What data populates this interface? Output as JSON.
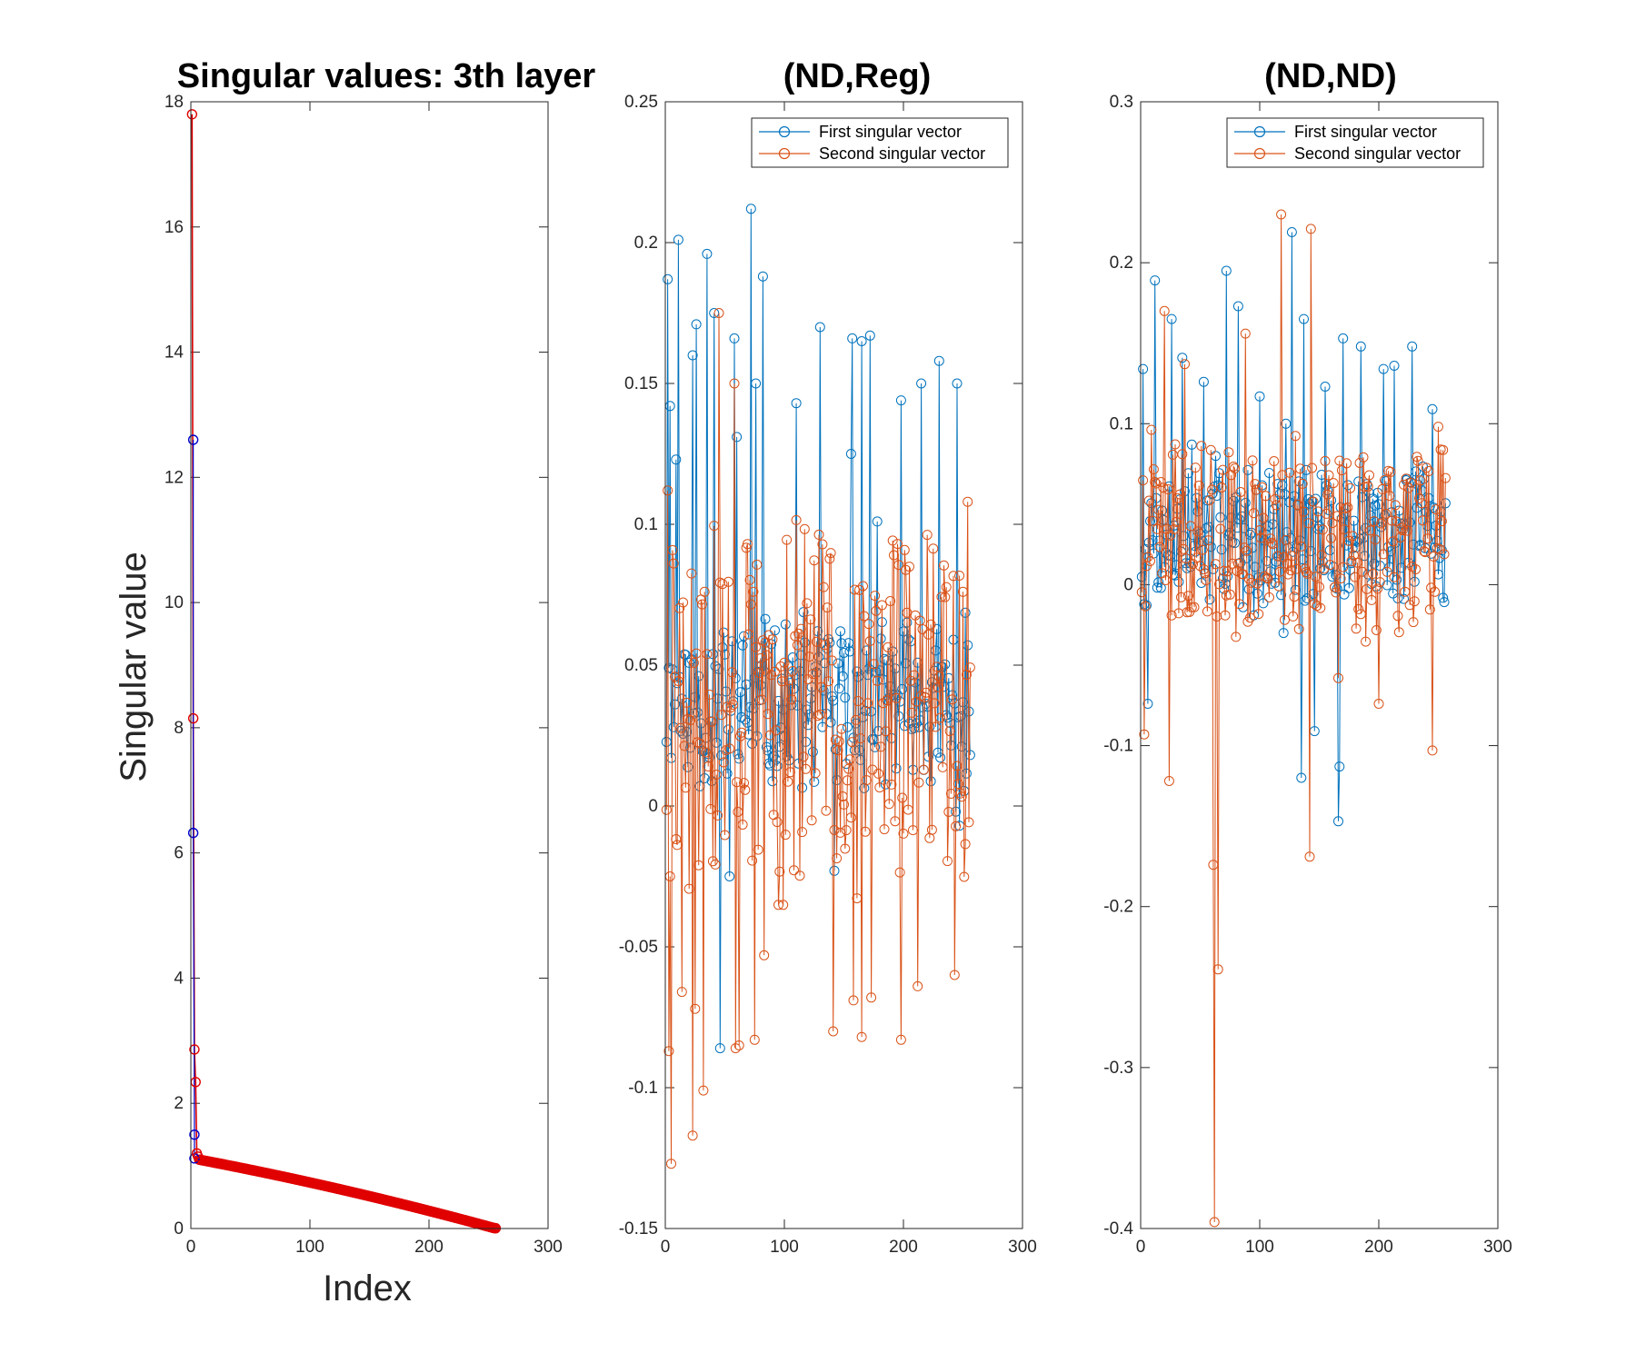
{
  "colors": {
    "first": "#0072BD",
    "second": "#D95319",
    "sv_line": "#D90000",
    "sv_blue": "#0000CC",
    "sv_red": "#E00000",
    "axis": "#262626"
  },
  "chart_data": [
    {
      "type": "line",
      "title": "Singular values: 3th layer",
      "xlabel": "Index",
      "ylabel": "Singular value",
      "xlim": [
        0,
        300
      ],
      "ylim": [
        0,
        18
      ],
      "xticks": [
        "0",
        "100",
        "200",
        "300"
      ],
      "yticks": [
        "0",
        "2",
        "4",
        "6",
        "8",
        "10",
        "12",
        "14",
        "16",
        "18"
      ],
      "grid": false,
      "series": [
        {
          "marker": "circle",
          "leading_blue_points": [
            [
              2,
              12.6
            ],
            [
              2,
              6.32
            ],
            [
              3,
              1.5
            ],
            [
              3,
              1.12
            ]
          ],
          "leading_red_points": [
            [
              1,
              17.8
            ],
            [
              2,
              8.15
            ],
            [
              3,
              2.86
            ],
            [
              4,
              2.34
            ],
            [
              5,
              1.2
            ],
            [
              6,
              1.15
            ]
          ],
          "tail_x_start": 7,
          "tail_x_end": 256,
          "tail_y_start": 1.1,
          "tail_y_end": 0.0
        }
      ]
    },
    {
      "type": "line",
      "title": "(ND,Reg)",
      "xlabel": "",
      "ylabel": "",
      "xlim": [
        0,
        300
      ],
      "ylim": [
        -0.15,
        0.25
      ],
      "xticks": [
        "0",
        "100",
        "200",
        "300"
      ],
      "yticks": [
        "-0.15",
        "-0.1",
        "-0.05",
        "0",
        "0.05",
        "0.1",
        "0.15",
        "0.2",
        "0.25"
      ],
      "grid": false,
      "legend": {
        "placement": "top-right",
        "entries": [
          "First singular vector",
          "Second singular vector"
        ]
      },
      "n": 256,
      "series": [
        {
          "name": "First singular vector",
          "base": 0.035,
          "spread": 0.035,
          "min": -0.03,
          "seed": 11,
          "peaks": [
            [
              2,
              0.187
            ],
            [
              4,
              0.142
            ],
            [
              11,
              0.201
            ],
            [
              9,
              0.123
            ],
            [
              23,
              0.16
            ],
            [
              26,
              0.171
            ],
            [
              35,
              0.196
            ],
            [
              41,
              0.175
            ],
            [
              46,
              -0.086
            ],
            [
              54,
              -0.025
            ],
            [
              58,
              0.166
            ],
            [
              60,
              0.131
            ],
            [
              72,
              0.212
            ],
            [
              76,
              0.15
            ],
            [
              82,
              0.188
            ],
            [
              110,
              0.143
            ],
            [
              130,
              0.17
            ],
            [
              142,
              -0.023
            ],
            [
              156,
              0.125
            ],
            [
              157,
              0.166
            ],
            [
              165,
              0.165
            ],
            [
              172,
              0.167
            ],
            [
              178,
              0.101
            ],
            [
              198,
              0.144
            ],
            [
              215,
              0.15
            ],
            [
              230,
              0.158
            ],
            [
              245,
              0.15
            ],
            [
              244,
              -0.002
            ],
            [
              247,
              -0.007
            ]
          ]
        },
        {
          "name": "Second singular vector",
          "base": 0.035,
          "spread": 0.075,
          "min": -0.085,
          "seed": 29,
          "peaks": [
            [
              2,
              0.112
            ],
            [
              3,
              -0.087
            ],
            [
              5,
              -0.127
            ],
            [
              4,
              -0.025
            ],
            [
              14,
              -0.066
            ],
            [
              23,
              -0.117
            ],
            [
              25,
              -0.072
            ],
            [
              32,
              -0.101
            ],
            [
              45,
              0.175
            ],
            [
              58,
              0.15
            ],
            [
              59,
              -0.086
            ],
            [
              62,
              -0.085
            ],
            [
              75,
              -0.083
            ],
            [
              83,
              -0.053
            ],
            [
              141,
              -0.08
            ],
            [
              158,
              -0.069
            ],
            [
              165,
              -0.082
            ],
            [
              173,
              -0.068
            ],
            [
              198,
              -0.083
            ],
            [
              212,
              -0.064
            ],
            [
              243,
              -0.06
            ],
            [
              254,
              0.108
            ]
          ]
        }
      ]
    },
    {
      "type": "line",
      "title": "(ND,ND)",
      "xlabel": "",
      "ylabel": "",
      "xlim": [
        0,
        300
      ],
      "ylim": [
        -0.4,
        0.3
      ],
      "xticks": [
        "0",
        "100",
        "200",
        "300"
      ],
      "yticks": [
        "-0.4",
        "-0.3",
        "-0.2",
        "-0.1",
        "0",
        "0.1",
        "0.2",
        "0.3"
      ],
      "grid": false,
      "legend": {
        "placement": "top-right",
        "entries": [
          "First singular vector",
          "Second singular vector"
        ]
      },
      "n": 256,
      "series": [
        {
          "name": "First singular vector",
          "base": 0.03,
          "spread": 0.05,
          "min": -0.06,
          "seed": 7,
          "peaks": [
            [
              2,
              0.134
            ],
            [
              6,
              -0.074
            ],
            [
              12,
              0.189
            ],
            [
              26,
              0.165
            ],
            [
              35,
              0.141
            ],
            [
              43,
              0.087
            ],
            [
              53,
              0.126
            ],
            [
              63,
              0.08
            ],
            [
              72,
              0.195
            ],
            [
              82,
              0.173
            ],
            [
              100,
              0.117
            ],
            [
              120,
              -0.03
            ],
            [
              122,
              0.1
            ],
            [
              127,
              0.219
            ],
            [
              135,
              -0.12
            ],
            [
              137,
              0.165
            ],
            [
              146,
              -0.091
            ],
            [
              155,
              0.123
            ],
            [
              166,
              -0.147
            ],
            [
              167,
              -0.113
            ],
            [
              170,
              0.153
            ],
            [
              185,
              0.148
            ],
            [
              200,
              0.05
            ],
            [
              204,
              0.134
            ],
            [
              213,
              0.136
            ],
            [
              228,
              0.148
            ],
            [
              245,
              0.109
            ]
          ]
        },
        {
          "name": "Second singular vector",
          "base": 0.03,
          "spread": 0.07,
          "min": -0.1,
          "seed": 41,
          "peaks": [
            [
              3,
              -0.093
            ],
            [
              24,
              -0.122
            ],
            [
              20,
              0.17
            ],
            [
              37,
              0.137
            ],
            [
              61,
              -0.174
            ],
            [
              62,
              -0.396
            ],
            [
              65,
              -0.239
            ],
            [
              88,
              0.156
            ],
            [
              118,
              0.23
            ],
            [
              143,
              0.221
            ],
            [
              142,
              -0.169
            ],
            [
              166,
              -0.058
            ],
            [
              200,
              -0.074
            ],
            [
              245,
              -0.103
            ]
          ]
        }
      ]
    }
  ]
}
